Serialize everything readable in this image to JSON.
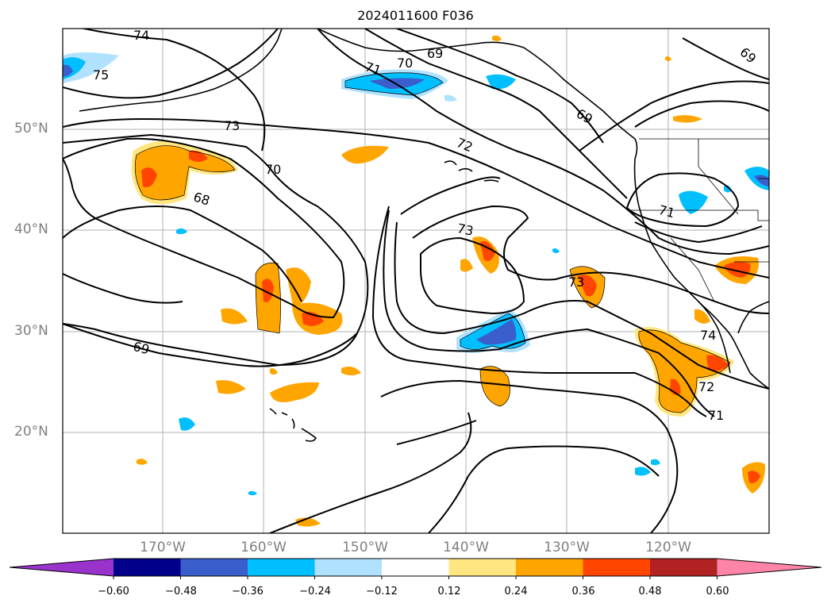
{
  "title": "2024011600 F036",
  "lat_labels": [
    "50°N",
    "40°N",
    "30°N",
    "20°N"
  ],
  "lon_labels": [
    "170°W",
    "160°W",
    "150°W",
    "140°W",
    "130°W",
    "120°W"
  ],
  "colorbar": {
    "ticks": [
      "−0.60",
      "−0.48",
      "−0.36",
      "−0.24",
      "−0.12",
      "0.12",
      "0.24",
      "0.36",
      "0.48",
      "0.60"
    ],
    "colors": [
      "#9933cc",
      "#00008b",
      "#3a5fcd",
      "#00bfff",
      "#b0e2ff",
      "#ffffff",
      "#ffe680",
      "#ffa500",
      "#ff4500",
      "#b22222",
      "#ff85a8"
    ]
  },
  "contour_labels": [
    "74",
    "75",
    "71",
    "70",
    "69",
    "69",
    "73",
    "72",
    "70",
    "68",
    "69",
    "73",
    "71",
    "73",
    "74",
    "72",
    "71",
    "69"
  ]
}
